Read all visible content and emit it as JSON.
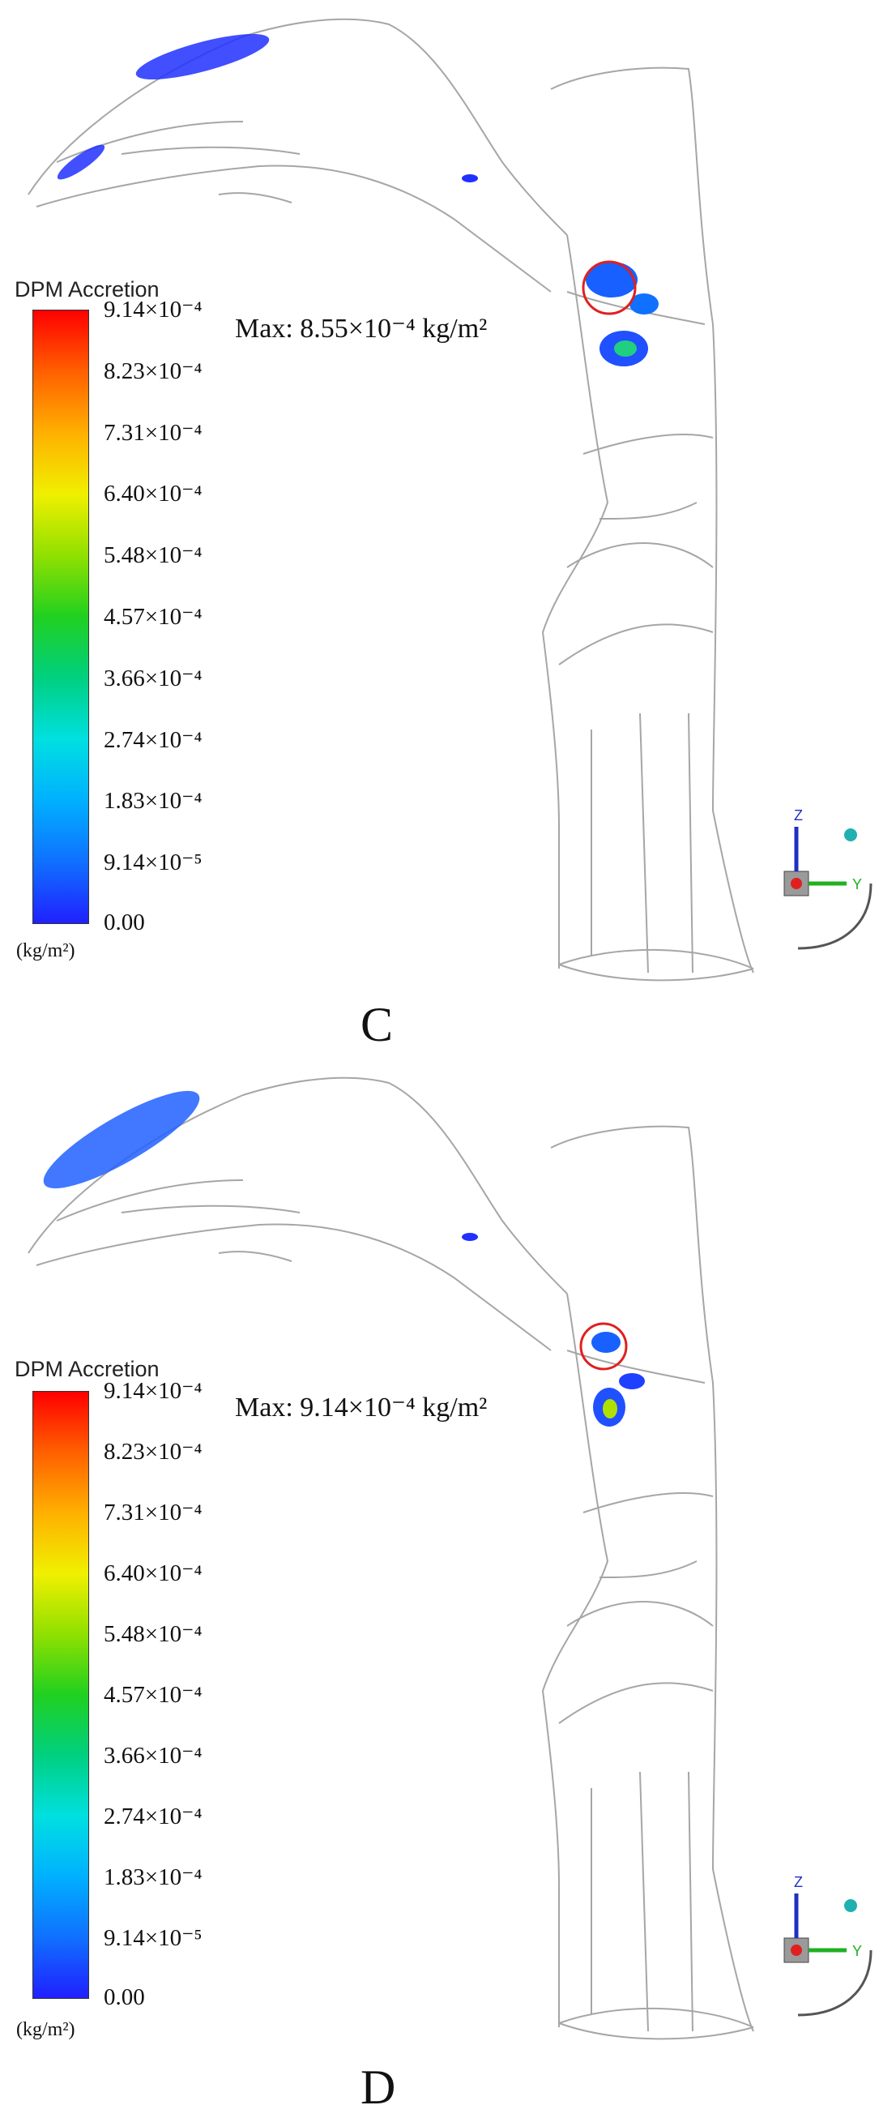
{
  "colors": {
    "scale": [
      "#2020ff",
      "#1070ff",
      "#00b0ff",
      "#00e0e0",
      "#00d080",
      "#20d020",
      "#90e000",
      "#f0f000",
      "#ffb000",
      "#ff6000",
      "#ff0000"
    ],
    "outline": "#a6a6a6",
    "highlight_circle": "#e02020"
  },
  "panels": [
    {
      "letter": "C",
      "colorbar": {
        "title": "DPM Accretion",
        "unit": "(kg/m²)",
        "ticks": [
          "9.14×10⁻⁴",
          "8.23×10⁻⁴",
          "7.31×10⁻⁴",
          "6.40×10⁻⁴",
          "5.48×10⁻⁴",
          "4.57×10⁻⁴",
          "3.66×10⁻⁴",
          "2.74×10⁻⁴",
          "1.83×10⁻⁴",
          "9.14×10⁻⁵",
          "0.00"
        ]
      },
      "max_label": "Max: 8.55×10⁻⁴ kg/m²",
      "axes_icon": {
        "z": "Z",
        "y": "Y"
      }
    },
    {
      "letter": "D",
      "colorbar": {
        "title": "DPM Accretion",
        "unit": "(kg/m²)",
        "ticks": [
          "9.14×10⁻⁴",
          "8.23×10⁻⁴",
          "7.31×10⁻⁴",
          "6.40×10⁻⁴",
          "5.48×10⁻⁴",
          "4.57×10⁻⁴",
          "3.66×10⁻⁴",
          "2.74×10⁻⁴",
          "1.83×10⁻⁴",
          "9.14×10⁻⁵",
          "0.00"
        ]
      },
      "max_label": "Max: 9.14×10⁻⁴ kg/m²",
      "axes_icon": {
        "z": "Z",
        "y": "Y"
      }
    }
  ]
}
